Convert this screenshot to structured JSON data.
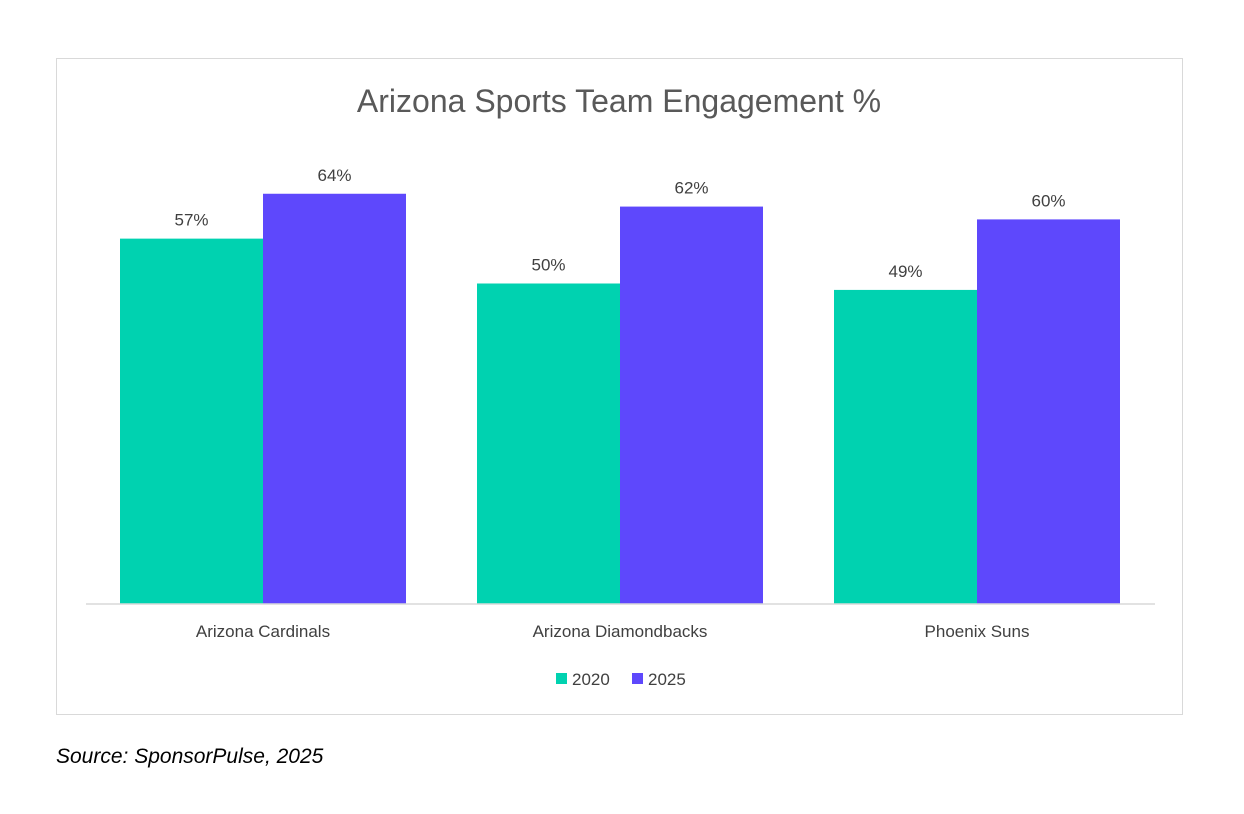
{
  "chart_data": {
    "type": "bar",
    "title": "Arizona Sports Team Engagement %",
    "categories": [
      "Arizona Cardinals",
      "Arizona Diamondbacks",
      "Phoenix Suns"
    ],
    "series": [
      {
        "name": "2020",
        "values": [
          57,
          50,
          49
        ],
        "labels": [
          "57%",
          "50%",
          "49%"
        ],
        "color": "#00d2b0"
      },
      {
        "name": "2025",
        "values": [
          64,
          62,
          60
        ],
        "labels": [
          "64%",
          "62%",
          "60%"
        ],
        "color": "#5e48fc"
      }
    ],
    "ylim": [
      0,
      70
    ],
    "grid": false,
    "legend_position": "bottom"
  },
  "source": "Source: SponsorPulse, 2025"
}
